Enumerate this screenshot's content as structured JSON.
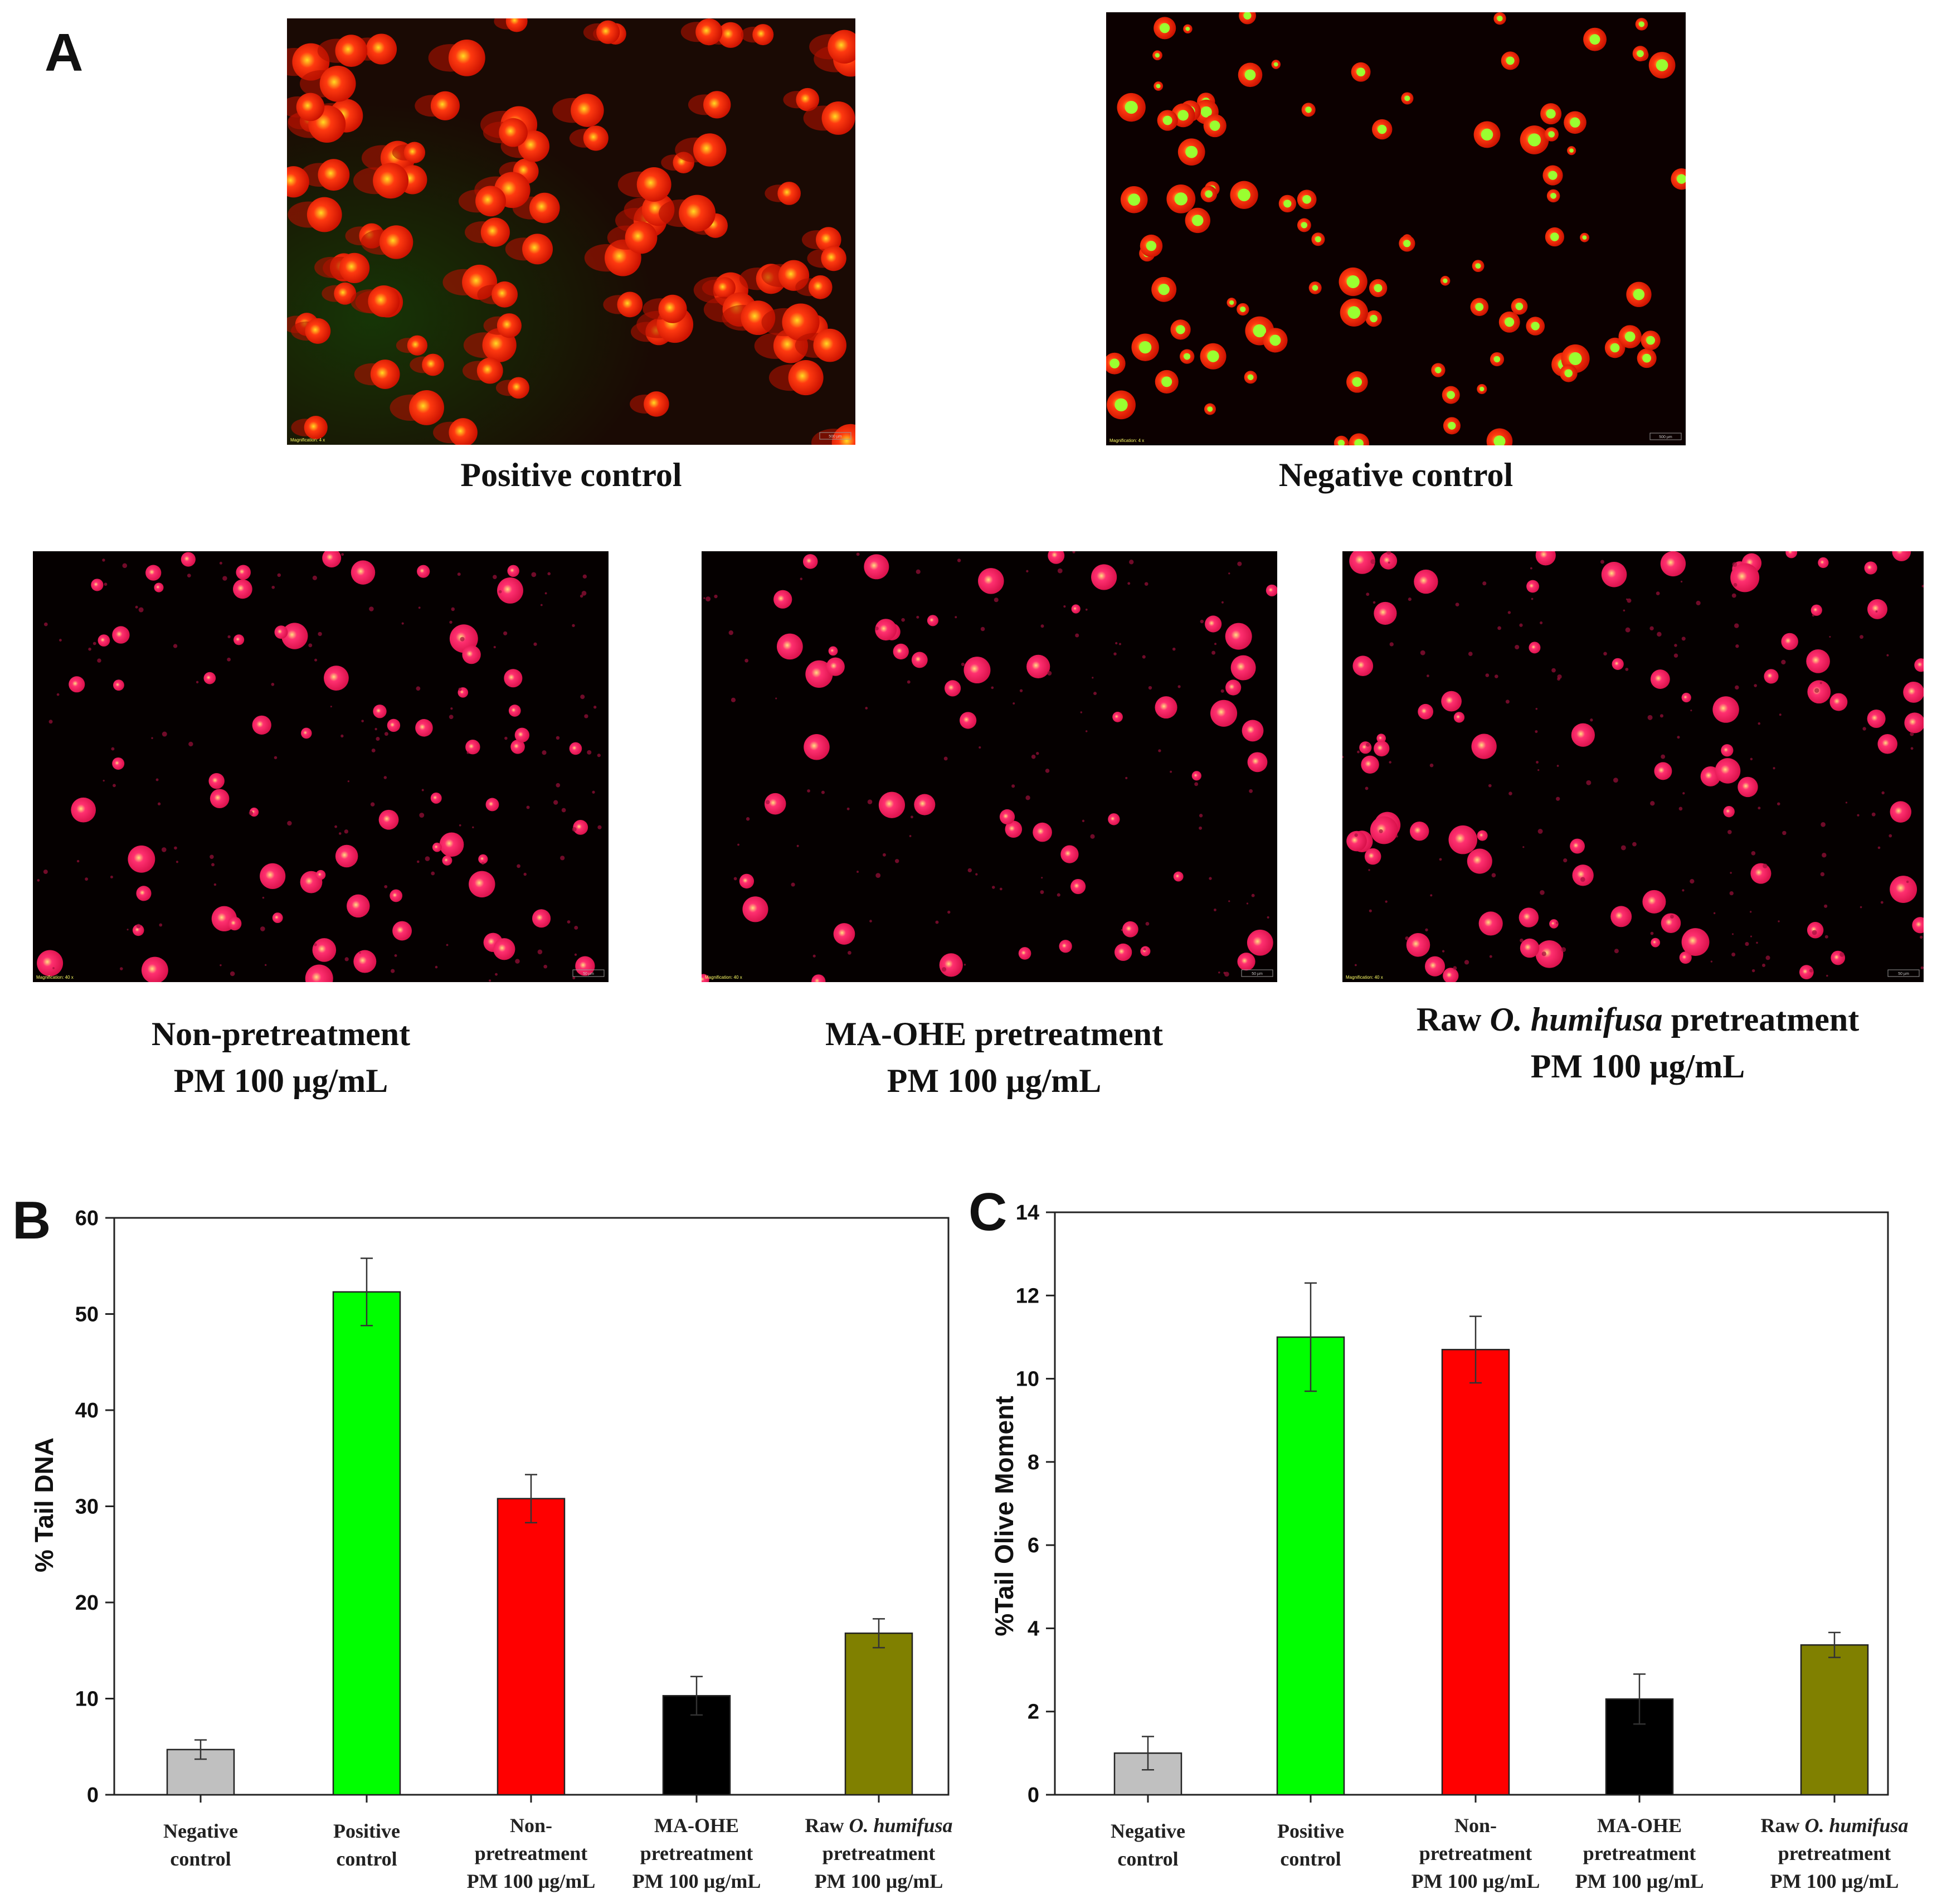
{
  "panel_a": {
    "label": "A",
    "images": [
      {
        "id": "positive",
        "caption_lines": [
          "Positive control"
        ],
        "scale_text": "Magnification: 4 x",
        "scalebar_text": "500 µm",
        "tone": "orange"
      },
      {
        "id": "negative",
        "caption_lines": [
          "Negative control"
        ],
        "scale_text": "Magnification: 4 x",
        "scalebar_text": "500 µm",
        "tone": "orange"
      },
      {
        "id": "nonpre",
        "caption_lines": [
          "Non-pretreatment",
          "PM 100 µg/mL"
        ],
        "scale_text": "Magnification: 40 x",
        "scalebar_text": "50 µm",
        "tone": "pink"
      },
      {
        "id": "maohe",
        "caption_lines": [
          "MA-OHE pretreatment",
          "PM 100 µg/mL"
        ],
        "scale_text": "Magnification: 40 x",
        "scalebar_text": "50 µm",
        "tone": "pink"
      },
      {
        "id": "raw",
        "caption_lines": [
          "Raw O. humifusa pretreatment",
          "PM 100 µg/mL"
        ],
        "scale_text": "Magnification: 40 x",
        "scalebar_text": "50 µm",
        "tone": "pink"
      }
    ]
  },
  "chart_data": [
    {
      "panel_label": "B",
      "type": "bar",
      "ylabel": "% Tail DNA",
      "xlabel": "",
      "ylim": [
        0,
        60
      ],
      "yticks": [
        0,
        10,
        20,
        30,
        40,
        50,
        60
      ],
      "categories": [
        "Negative control",
        "Positive control",
        "Non-pretreatment PM 100 µg/mL",
        "MA-OHE pretreatment PM 100 µg/mL",
        "Raw O. humifusa pretreatment PM 100 µg/mL"
      ],
      "values": [
        4.7,
        52.3,
        30.8,
        10.3,
        16.8
      ],
      "errors": [
        1.0,
        3.5,
        2.5,
        2.0,
        1.5
      ],
      "colors": [
        "#c0c0c0",
        "#00ff00",
        "#ff0000",
        "#000000",
        "#808000"
      ]
    },
    {
      "panel_label": "C",
      "type": "bar",
      "ylabel": "%Tail Olive Moment",
      "xlabel": "",
      "ylim": [
        0,
        14
      ],
      "yticks": [
        0,
        2,
        4,
        6,
        8,
        10,
        12,
        14
      ],
      "categories": [
        "Negative control",
        "Positive control",
        "Non-pretreatment PM 100 µg/mL",
        "MA-OHE pretreatment PM 100 µg/mL",
        "Raw O. humifusa pretreatment PM 100 µg/mL"
      ],
      "values": [
        1.0,
        11.0,
        10.7,
        2.3,
        3.6
      ],
      "errors": [
        0.4,
        1.3,
        0.8,
        0.6,
        0.3
      ],
      "colors": [
        "#c0c0c0",
        "#00ff00",
        "#ff0000",
        "#000000",
        "#808000"
      ]
    }
  ],
  "category_label_lines": [
    [
      [
        "Negative",
        ""
      ],
      [
        "control",
        ""
      ]
    ],
    [
      [
        "Positive",
        ""
      ],
      [
        "control",
        ""
      ]
    ],
    [
      [
        "Non-",
        ""
      ],
      [
        "pretreatment",
        ""
      ],
      [
        "PM 100 µg/mL",
        ""
      ]
    ],
    [
      [
        "MA-OHE",
        ""
      ],
      [
        "pretreatment",
        ""
      ],
      [
        "PM 100 µg/mL",
        ""
      ]
    ],
    [
      [
        "Raw ",
        "O. humifusa"
      ],
      [
        "pretreatment",
        ""
      ],
      [
        "PM 100 µg/mL",
        ""
      ]
    ]
  ]
}
